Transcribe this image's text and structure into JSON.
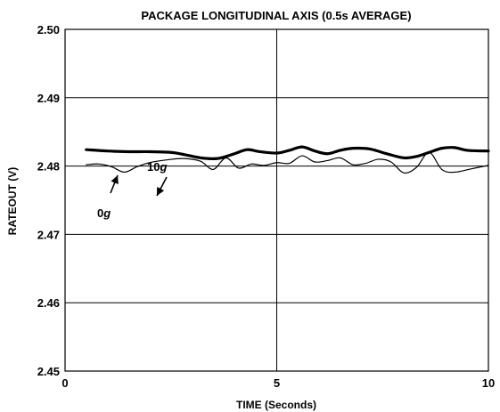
{
  "chart_data": {
    "type": "line",
    "title": "PACKAGE LONGITUDINAL AXIS (0.5s AVERAGE)",
    "xlabel": "TIME (Seconds)",
    "ylabel": "RATEOUT (V)",
    "xlim": [
      0,
      10
    ],
    "ylim": [
      2.45,
      2.5
    ],
    "x_ticks": [
      0,
      5,
      10
    ],
    "x_tick_labels": [
      "0",
      "5",
      "10"
    ],
    "y_ticks": [
      2.45,
      2.46,
      2.47,
      2.48,
      2.49,
      2.5
    ],
    "y_tick_labels": [
      "2.45",
      "2.46",
      "2.47",
      "2.48",
      "2.49",
      "2.50"
    ],
    "grid": true,
    "legend": "none",
    "series": [
      {
        "name": "10g",
        "stroke": "thick",
        "x": [
          0.5,
          1.0,
          1.5,
          2.0,
          2.5,
          2.8,
          3.2,
          3.6,
          4.0,
          4.3,
          4.6,
          5.0,
          5.3,
          5.6,
          5.9,
          6.2,
          6.5,
          6.8,
          7.2,
          7.6,
          8.0,
          8.3,
          8.6,
          8.9,
          9.2,
          9.5,
          10.0
        ],
        "values": [
          2.4824,
          2.4822,
          2.4821,
          2.4821,
          2.482,
          2.4817,
          2.4812,
          2.4811,
          2.4818,
          2.4824,
          2.4821,
          2.4819,
          2.4823,
          2.4828,
          2.4822,
          2.4818,
          2.4823,
          2.4826,
          2.4825,
          2.4818,
          2.4812,
          2.4814,
          2.482,
          2.4826,
          2.4827,
          2.4823,
          2.4822
        ]
      },
      {
        "name": "0g",
        "stroke": "thin",
        "x": [
          0.5,
          0.8,
          1.1,
          1.4,
          1.7,
          2.0,
          2.4,
          2.8,
          3.2,
          3.5,
          3.8,
          4.1,
          4.4,
          4.7,
          5.0,
          5.3,
          5.6,
          5.9,
          6.2,
          6.5,
          6.8,
          7.1,
          7.4,
          7.7,
          8.0,
          8.3,
          8.6,
          8.9,
          9.2,
          9.6,
          10.0
        ],
        "values": [
          2.4802,
          2.4803,
          2.4799,
          2.4791,
          2.4799,
          2.4805,
          2.4809,
          2.4811,
          2.4807,
          2.4795,
          2.4812,
          2.4797,
          2.4803,
          2.4801,
          2.4805,
          2.4804,
          2.4815,
          2.4806,
          2.4808,
          2.4812,
          2.4802,
          2.4804,
          2.481,
          2.4806,
          2.479,
          2.4798,
          2.482,
          2.4795,
          2.4791,
          2.4796,
          2.4801
        ]
      }
    ],
    "annotations": [
      {
        "label": "10",
        "suffix": "g",
        "points_to_series": "10g"
      },
      {
        "label": "0",
        "suffix": "g",
        "points_to_series": "0g"
      }
    ]
  }
}
